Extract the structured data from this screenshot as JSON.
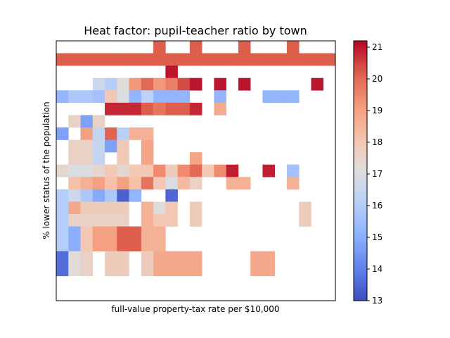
{
  "chart_data": {
    "type": "heatmap",
    "title": "Heat factor: pupil-teacher ratio by town",
    "xlabel": "full-value property-tax rate per $10,000",
    "ylabel": "% lower status of the population",
    "ncols": 23,
    "nrows": 21,
    "colorbar": {
      "colormap": "coolwarm",
      "vmin": 13,
      "vmax": 21.2,
      "ticks": [
        13,
        14,
        15,
        16,
        17,
        18,
        19,
        20,
        21
      ]
    },
    "cells": [
      [
        0,
        8,
        20.2
      ],
      [
        0,
        11,
        20.2
      ],
      [
        0,
        15,
        20.2
      ],
      [
        0,
        19,
        20.2
      ],
      [
        1,
        0,
        20.2
      ],
      [
        1,
        1,
        20.2
      ],
      [
        1,
        2,
        20.2
      ],
      [
        1,
        3,
        20.2
      ],
      [
        1,
        4,
        20.2
      ],
      [
        1,
        5,
        20.2
      ],
      [
        1,
        6,
        20.2
      ],
      [
        1,
        7,
        20.2
      ],
      [
        1,
        8,
        20.2
      ],
      [
        1,
        9,
        20.2
      ],
      [
        1,
        10,
        20.2
      ],
      [
        1,
        11,
        20.2
      ],
      [
        1,
        12,
        20.2
      ],
      [
        1,
        13,
        20.2
      ],
      [
        1,
        14,
        20.2
      ],
      [
        1,
        15,
        20.2
      ],
      [
        1,
        16,
        20.2
      ],
      [
        1,
        17,
        20.2
      ],
      [
        1,
        18,
        20.2
      ],
      [
        1,
        19,
        20.2
      ],
      [
        1,
        20,
        20.2
      ],
      [
        1,
        21,
        20.2
      ],
      [
        1,
        22,
        20.2
      ],
      [
        2,
        9,
        21.0
      ],
      [
        3,
        3,
        16.6
      ],
      [
        3,
        4,
        16.0
      ],
      [
        3,
        5,
        17.2
      ],
      [
        3,
        6,
        19.2
      ],
      [
        3,
        7,
        20.0
      ],
      [
        3,
        8,
        19.2
      ],
      [
        3,
        9,
        19.6
      ],
      [
        3,
        10,
        20.4
      ],
      [
        3,
        11,
        21.0
      ],
      [
        3,
        13,
        21.0
      ],
      [
        3,
        15,
        21.0
      ],
      [
        3,
        21,
        21.0
      ],
      [
        4,
        0,
        15.2
      ],
      [
        4,
        1,
        15.8
      ],
      [
        4,
        2,
        15.8
      ],
      [
        4,
        3,
        15.6
      ],
      [
        4,
        4,
        18.0
      ],
      [
        4,
        5,
        17.0
      ],
      [
        4,
        6,
        15.2
      ],
      [
        4,
        7,
        16.2
      ],
      [
        4,
        8,
        15.2
      ],
      [
        4,
        9,
        15.2
      ],
      [
        4,
        10,
        15.2
      ],
      [
        4,
        13,
        15.2
      ],
      [
        4,
        17,
        15.2
      ],
      [
        4,
        18,
        15.2
      ],
      [
        4,
        19,
        15.2
      ],
      [
        5,
        4,
        20.8
      ],
      [
        5,
        5,
        20.8
      ],
      [
        5,
        6,
        20.8
      ],
      [
        5,
        7,
        20.2
      ],
      [
        5,
        8,
        19.8
      ],
      [
        5,
        9,
        20.2
      ],
      [
        5,
        10,
        20.2
      ],
      [
        5,
        11,
        20.8
      ],
      [
        5,
        13,
        18.7
      ],
      [
        6,
        1,
        17.6
      ],
      [
        6,
        2,
        14.7
      ],
      [
        6,
        3,
        17.6
      ],
      [
        7,
        0,
        14.7
      ],
      [
        7,
        2,
        19.0
      ],
      [
        7,
        3,
        16.4
      ],
      [
        7,
        4,
        20.1
      ],
      [
        7,
        5,
        16.1
      ],
      [
        7,
        6,
        18.6
      ],
      [
        7,
        7,
        18.6
      ],
      [
        8,
        1,
        17.6
      ],
      [
        8,
        2,
        17.6
      ],
      [
        8,
        3,
        16.4
      ],
      [
        8,
        4,
        14.7
      ],
      [
        8,
        5,
        17.9
      ],
      [
        8,
        7,
        18.9
      ],
      [
        9,
        1,
        17.6
      ],
      [
        9,
        2,
        17.6
      ],
      [
        9,
        3,
        16.4
      ],
      [
        9,
        5,
        17.9
      ],
      [
        9,
        7,
        18.9
      ],
      [
        9,
        11,
        18.9
      ],
      [
        10,
        0,
        17.4
      ],
      [
        10,
        1,
        17.0
      ],
      [
        10,
        2,
        17.0
      ],
      [
        10,
        3,
        17.4
      ],
      [
        10,
        4,
        18.0
      ],
      [
        10,
        5,
        17.4
      ],
      [
        10,
        6,
        18.0
      ],
      [
        10,
        7,
        18.0
      ],
      [
        10,
        8,
        19.4
      ],
      [
        10,
        9,
        17.8
      ],
      [
        10,
        10,
        19.4
      ],
      [
        10,
        11,
        20.0
      ],
      [
        10,
        12,
        18.0
      ],
      [
        10,
        13,
        19.4
      ],
      [
        10,
        14,
        20.9
      ],
      [
        10,
        17,
        20.9
      ],
      [
        10,
        19,
        15.6
      ],
      [
        11,
        1,
        18.2
      ],
      [
        11,
        2,
        18.6
      ],
      [
        11,
        3,
        19.0
      ],
      [
        11,
        4,
        18.2
      ],
      [
        11,
        5,
        19.0
      ],
      [
        11,
        6,
        18.2
      ],
      [
        11,
        7,
        19.8
      ],
      [
        11,
        8,
        18.0
      ],
      [
        11,
        9,
        17.0
      ],
      [
        11,
        10,
        18.4
      ],
      [
        11,
        11,
        17.6
      ],
      [
        11,
        14,
        18.6
      ],
      [
        11,
        15,
        18.6
      ],
      [
        11,
        19,
        18.6
      ],
      [
        12,
        0,
        16.0
      ],
      [
        12,
        1,
        16.6
      ],
      [
        12,
        2,
        15.8
      ],
      [
        12,
        3,
        14.9
      ],
      [
        12,
        4,
        15.8
      ],
      [
        12,
        5,
        13.4
      ],
      [
        12,
        6,
        15.2
      ],
      [
        12,
        9,
        13.5
      ],
      [
        13,
        0,
        16.0
      ],
      [
        13,
        1,
        18.8
      ],
      [
        13,
        2,
        17.8
      ],
      [
        13,
        3,
        17.8
      ],
      [
        13,
        4,
        17.8
      ],
      [
        13,
        5,
        17.8
      ],
      [
        13,
        7,
        18.6
      ],
      [
        13,
        8,
        17.2
      ],
      [
        13,
        9,
        18.0
      ],
      [
        13,
        11,
        17.8
      ],
      [
        13,
        20,
        17.8
      ],
      [
        14,
        0,
        16.0
      ],
      [
        14,
        1,
        17.6
      ],
      [
        14,
        2,
        17.6
      ],
      [
        14,
        3,
        17.6
      ],
      [
        14,
        4,
        17.6
      ],
      [
        14,
        5,
        17.6
      ],
      [
        14,
        7,
        18.6
      ],
      [
        14,
        8,
        18.0
      ],
      [
        14,
        9,
        18.0
      ],
      [
        14,
        11,
        17.8
      ],
      [
        14,
        20,
        17.8
      ],
      [
        15,
        0,
        16.0
      ],
      [
        15,
        1,
        15.0
      ],
      [
        15,
        2,
        18.0
      ],
      [
        15,
        3,
        19.0
      ],
      [
        15,
        4,
        19.0
      ],
      [
        15,
        5,
        20.2
      ],
      [
        15,
        6,
        20.2
      ],
      [
        15,
        7,
        18.6
      ],
      [
        15,
        8,
        18.6
      ],
      [
        16,
        0,
        16.0
      ],
      [
        16,
        1,
        15.0
      ],
      [
        16,
        2,
        18.0
      ],
      [
        16,
        3,
        19.0
      ],
      [
        16,
        4,
        19.0
      ],
      [
        16,
        5,
        20.2
      ],
      [
        16,
        6,
        20.2
      ],
      [
        16,
        7,
        18.6
      ],
      [
        16,
        8,
        18.6
      ],
      [
        17,
        0,
        13.6
      ],
      [
        17,
        1,
        17.2
      ],
      [
        17,
        2,
        17.6
      ],
      [
        17,
        4,
        17.8
      ],
      [
        17,
        5,
        17.8
      ],
      [
        17,
        7,
        17.8
      ],
      [
        17,
        8,
        18.8
      ],
      [
        17,
        9,
        18.8
      ],
      [
        17,
        10,
        18.8
      ],
      [
        17,
        11,
        18.8
      ],
      [
        17,
        16,
        18.8
      ],
      [
        17,
        17,
        18.8
      ],
      [
        18,
        0,
        13.6
      ],
      [
        18,
        1,
        17.2
      ],
      [
        18,
        2,
        17.6
      ],
      [
        18,
        4,
        17.8
      ],
      [
        18,
        5,
        17.8
      ],
      [
        18,
        7,
        17.8
      ],
      [
        18,
        8,
        18.8
      ],
      [
        18,
        9,
        18.8
      ],
      [
        18,
        10,
        18.8
      ],
      [
        18,
        11,
        18.8
      ],
      [
        18,
        16,
        18.8
      ],
      [
        18,
        17,
        18.8
      ]
    ]
  }
}
